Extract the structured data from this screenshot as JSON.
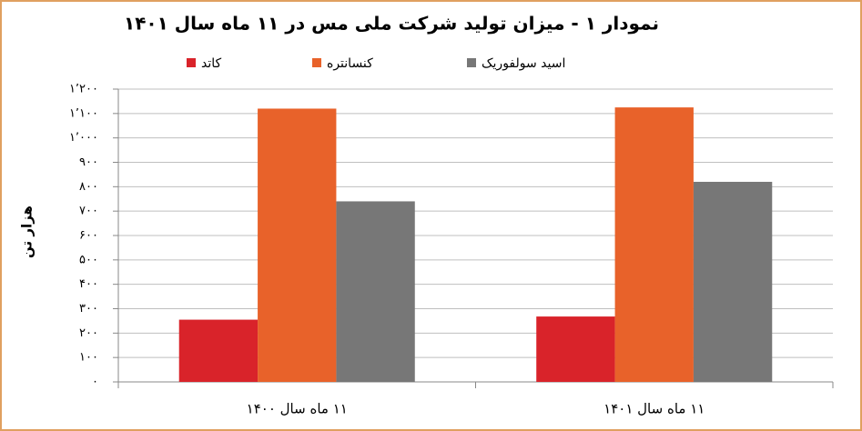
{
  "chart_data": {
    "type": "bar",
    "title": "نمودار ۱ - میزان تولید شرکت ملی مس در ۱۱ ماه سال ۱۴۰۱",
    "y_label": "هزار تن",
    "categories": [
      "۱۱ ماه سال ۱۴۰۰",
      "۱۱ ماه سال ۱۴۰۱"
    ],
    "series": [
      {
        "name": "کاتد",
        "color": "#d9232a",
        "values": [
          255,
          268
        ]
      },
      {
        "name": "کنسانتره",
        "color": "#e8622a",
        "values": [
          1120,
          1125
        ]
      },
      {
        "name": "اسید سولفوریک",
        "color": "#777777",
        "values": [
          740,
          820
        ]
      }
    ],
    "ylim": [
      0,
      1200
    ],
    "yticks": [
      {
        "value": 0,
        "label": "۰"
      },
      {
        "value": 100,
        "label": "۱۰۰"
      },
      {
        "value": 200,
        "label": "۲۰۰"
      },
      {
        "value": 300,
        "label": "۳۰۰"
      },
      {
        "value": 400,
        "label": "۴۰۰"
      },
      {
        "value": 500,
        "label": "۵۰۰"
      },
      {
        "value": 600,
        "label": "۶۰۰"
      },
      {
        "value": 700,
        "label": "۷۰۰"
      },
      {
        "value": 800,
        "label": "۸۰۰"
      },
      {
        "value": 900,
        "label": "۹۰۰"
      },
      {
        "value": 1000,
        "label": "۱٬۰۰۰"
      },
      {
        "value": 1100,
        "label": "۱٬۱۰۰"
      },
      {
        "value": 1200,
        "label": "۱٬۲۰۰"
      }
    ],
    "grid": true
  }
}
